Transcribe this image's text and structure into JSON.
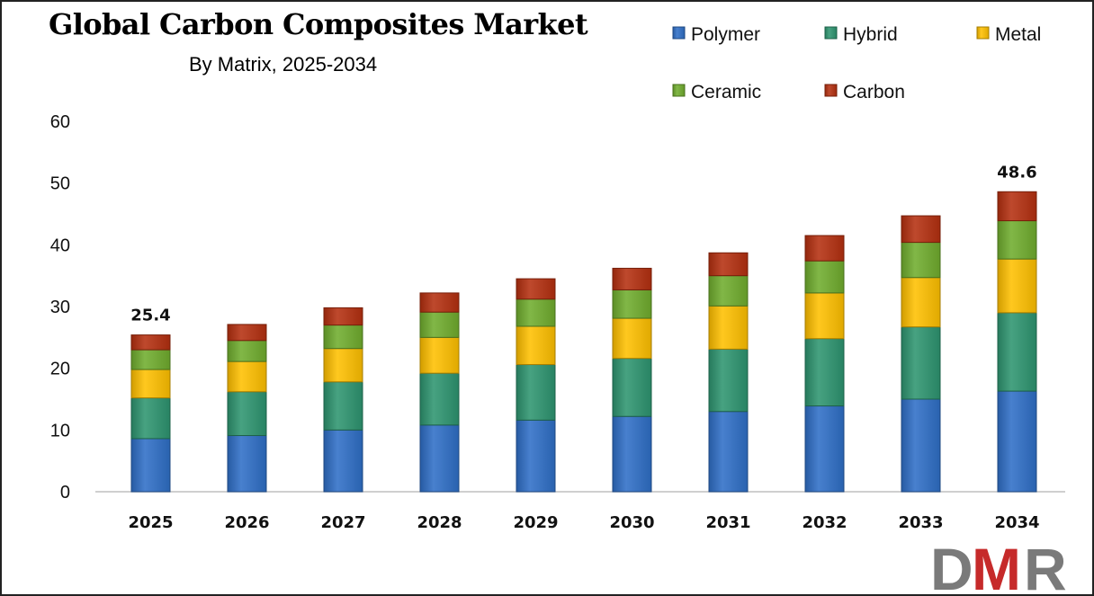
{
  "chart_data": {
    "type": "bar",
    "stacked": true,
    "title": "Global Carbon Composites Market",
    "subtitle": "By Matrix, 2025-2034",
    "xlabel": "",
    "ylabel": "",
    "ylim": [
      0,
      60
    ],
    "yticks": [
      0,
      10,
      20,
      30,
      40,
      50,
      60
    ],
    "grid": false,
    "legend_position": "top-right",
    "categories": [
      "2025",
      "2026",
      "2027",
      "2028",
      "2029",
      "2030",
      "2031",
      "2032",
      "2033",
      "2034"
    ],
    "series": [
      {
        "name": "Polymer",
        "color": "#2f6fc7",
        "values": [
          8.6,
          9.1,
          10.0,
          10.8,
          11.6,
          12.2,
          13.0,
          13.9,
          15.0,
          16.3
        ]
      },
      {
        "name": "Hybrid",
        "color": "#2e9570",
        "values": [
          6.6,
          7.1,
          7.8,
          8.4,
          9.0,
          9.4,
          10.1,
          10.9,
          11.7,
          12.7
        ]
      },
      {
        "name": "Metal",
        "color": "#ffc000",
        "values": [
          4.6,
          4.9,
          5.4,
          5.8,
          6.2,
          6.5,
          7.0,
          7.4,
          8.0,
          8.7
        ]
      },
      {
        "name": "Ceramic",
        "color": "#70ad2e",
        "values": [
          3.2,
          3.4,
          3.8,
          4.1,
          4.4,
          4.6,
          4.9,
          5.2,
          5.7,
          6.2
        ]
      },
      {
        "name": "Carbon",
        "color": "#b53010",
        "values": [
          2.4,
          2.6,
          2.8,
          3.1,
          3.3,
          3.5,
          3.7,
          4.1,
          4.3,
          4.7
        ]
      }
    ],
    "totals_labeled": {
      "2025": "25.4",
      "2034": "48.6"
    }
  },
  "logo_text": "DMR"
}
